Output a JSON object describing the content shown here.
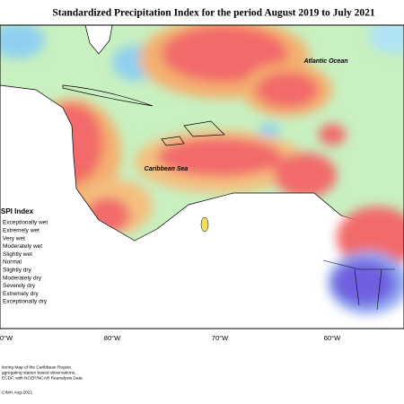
{
  "header": {
    "title": "Standardized Precipitation Index for the period August 2019 to July 2021"
  },
  "map": {
    "labels": [
      "Atlantic Ocean",
      "Caribbean Sea"
    ],
    "longitudes": [
      "0°W",
      "80°W",
      "70°W",
      "60°W"
    ]
  },
  "legend": {
    "title": "SPI Index",
    "items": [
      "Exceptionally wet",
      "Extremely wet",
      "Very wet",
      "Moderately wet",
      "Slightly wet",
      "Normal",
      "Slightly dry",
      "Moderately dry",
      "Severely dry",
      "Extremely dry",
      "Exceptionally dry"
    ]
  },
  "footer": [
    "itoring Map of the Caribbean Region.",
    "ggregating station based observations,",
    "ECDF, with NCEP/NCAR Reanalysis Data.",
    "CIMH Aug-2021"
  ]
}
